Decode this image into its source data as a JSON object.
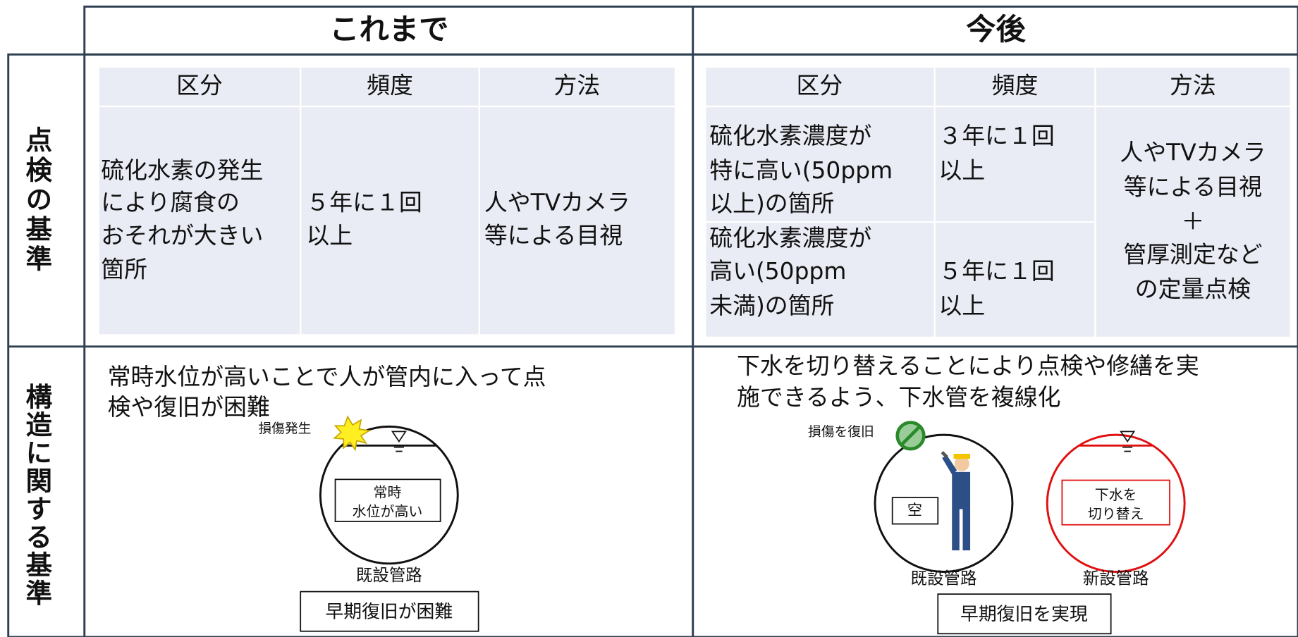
{
  "header": {
    "before": "これまで",
    "after": "今後"
  },
  "row_labels": [
    "点検の基準",
    "構造に関する基準"
  ],
  "inspection_before": {
    "columns": [
      "区分",
      "頻度",
      "方法"
    ],
    "rows": [
      [
        [
          "硫化水素の発生",
          "により腐食の",
          "おそれが大きい",
          "箇所"
        ],
        [
          "５年に１回",
          "以上"
        ],
        [
          "人やTVカメラ",
          "等による目視"
        ]
      ]
    ]
  },
  "inspection_after": {
    "columns": [
      "区分",
      "頻度",
      "方法"
    ],
    "rows": [
      [
        [
          "硫化水素濃度が",
          "特に高い(50ppm",
          "以上)の箇所"
        ],
        [
          "３年に１回",
          "以上"
        ]
      ],
      [
        [
          "硫化水素濃度が",
          "高い(50ppm",
          "未満)の箇所"
        ],
        [
          "５年に１回",
          "以上"
        ]
      ]
    ],
    "method": [
      "人やTVカメラ",
      "等による目視",
      "＋",
      "管厚測定など",
      "の定量点検"
    ]
  },
  "structure_before": {
    "text": [
      "常時水位が高いことで人が管内に入って点",
      "検や復旧が困難"
    ],
    "damage": "損傷発生",
    "pipe_text": [
      "常時",
      "水位が高い"
    ],
    "pipe_label": "既設管路",
    "result": "早期復旧が困難"
  },
  "structure_after": {
    "text": [
      "下水を切り替えることにより点検や修繕を実",
      "施できるよう、下水管を複線化"
    ],
    "repair": "損傷を復旧",
    "empty": "空",
    "existing": "既設管路",
    "new_pipe_text": [
      "下水を",
      "切り替え"
    ],
    "new_pipe": "新設管路",
    "result": "早期復旧を実現"
  }
}
